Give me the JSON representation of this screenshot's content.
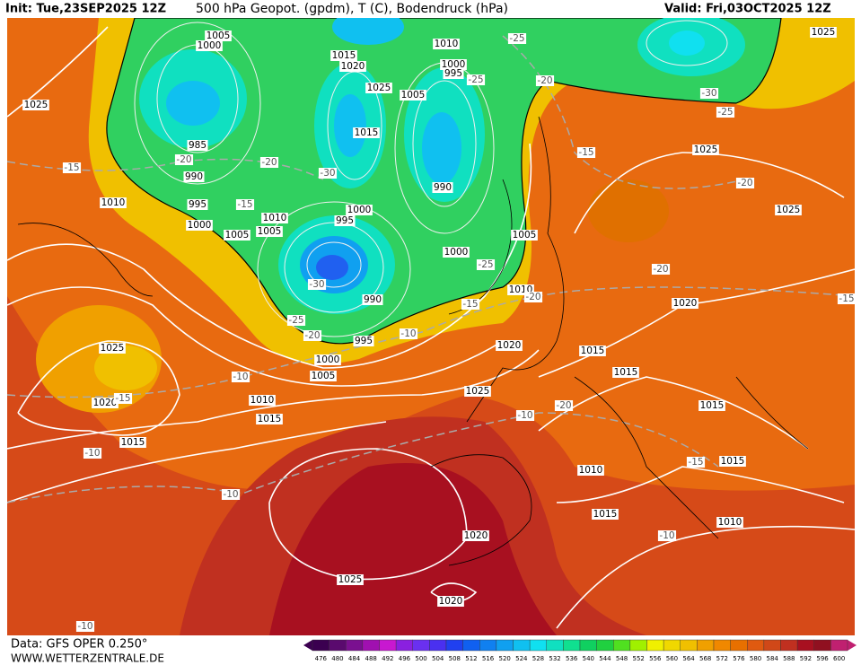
{
  "header": {
    "init": "Init: Tue,23SEP2025 12Z",
    "title": "500 hPa Geopot. (gpdm), T (C), Bodendruck (hPa)",
    "valid": "Valid: Fri,03OCT2025 12Z"
  },
  "footer": {
    "data": "Data: GFS OPER 0.250°",
    "site": "WWW.WETTERZENTRALE.DE"
  },
  "colorbar": {
    "ticks": [
      476,
      480,
      484,
      488,
      492,
      496,
      500,
      504,
      508,
      512,
      516,
      520,
      524,
      528,
      532,
      536,
      540,
      544,
      548,
      552,
      556,
      560,
      564,
      568,
      572,
      576,
      580,
      584,
      588,
      592,
      596,
      600
    ],
    "colors": [
      "#3b0050",
      "#5a0a6e",
      "#7a1090",
      "#a010b0",
      "#c818d0",
      "#8a20e0",
      "#6a30f0",
      "#4a30f0",
      "#2040f0",
      "#1060f0",
      "#1080f0",
      "#10a0f0",
      "#10c0f0",
      "#10e0f0",
      "#10e0c0",
      "#10e090",
      "#10d060",
      "#20d040",
      "#50e020",
      "#a0f000",
      "#f0f000",
      "#f0d800",
      "#f0c000",
      "#f0a000",
      "#f08800",
      "#e87000",
      "#e05a10",
      "#d04818",
      "#c03020",
      "#a81020",
      "#901020",
      "#c02070"
    ]
  },
  "pressure_labels": [
    "1025",
    "1005",
    "1000",
    "1015",
    "1020",
    "1010",
    "1000",
    "995",
    "1025",
    "1005",
    "1015",
    "985",
    "990",
    "995",
    "1000",
    "1005",
    "1010",
    "1005",
    "995",
    "1000",
    "990",
    "1000",
    "1005",
    "1010",
    "990",
    "995",
    "1000",
    "1005",
    "1010",
    "1015",
    "1020",
    "1025",
    "1015",
    "1010",
    "1025",
    "1025",
    "1025",
    "1020",
    "1015",
    "1015",
    "1020",
    "1025",
    "1015",
    "1015",
    "1010",
    "1015",
    "1010",
    "1020",
    "1025",
    "1020"
  ],
  "temperature_labels": [
    "-25",
    "-20",
    "-25",
    "-30",
    "-25",
    "-15",
    "-20",
    "-20",
    "-20",
    "-15",
    "-25",
    "-15",
    "-20",
    "-20",
    "-30",
    "-15",
    "-30",
    "-25",
    "-20",
    "-10",
    "-10",
    "-15",
    "-10",
    "-10",
    "-10",
    "-20",
    "-15",
    "-10",
    "-10",
    "-15"
  ]
}
